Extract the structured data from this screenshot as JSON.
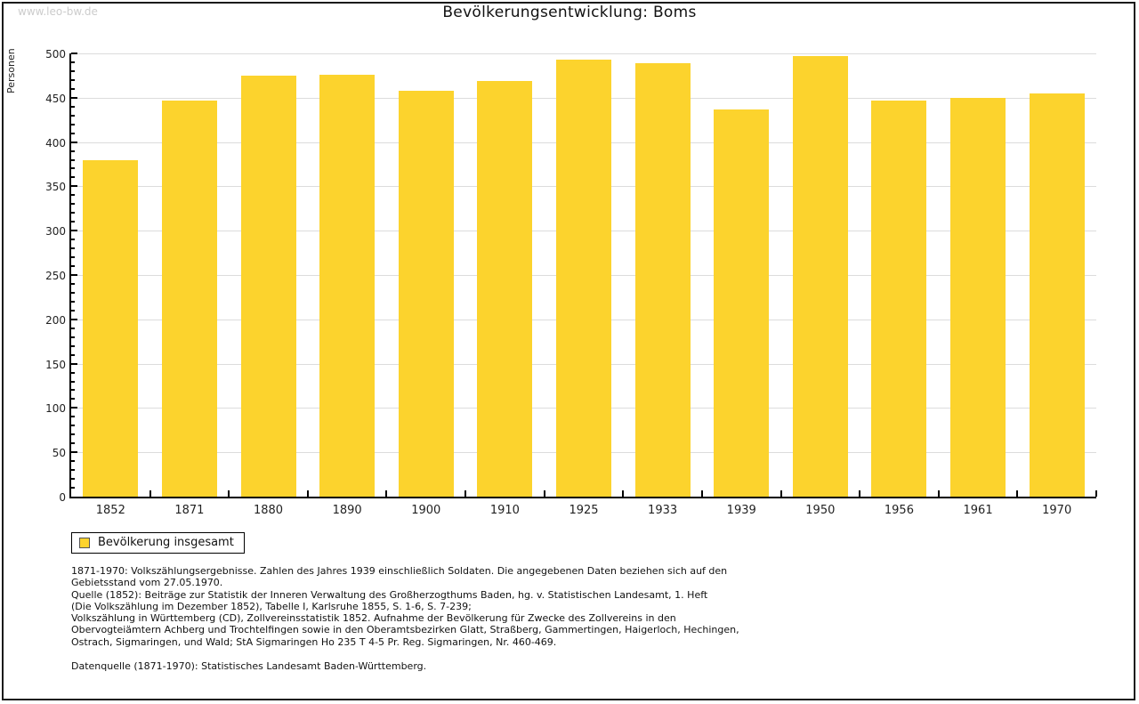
{
  "watermark": "www.leo-bw.de",
  "title": "Bevölkerungsentwicklung: Boms",
  "chart_data": {
    "type": "bar",
    "title": "Bevölkerungsentwicklung: Boms",
    "xlabel": "",
    "ylabel": "Personen",
    "categories": [
      "1852",
      "1871",
      "1880",
      "1890",
      "1900",
      "1910",
      "1925",
      "1933",
      "1939",
      "1950",
      "1956",
      "1961",
      "1970"
    ],
    "values": [
      380,
      447,
      475,
      476,
      458,
      469,
      493,
      489,
      437,
      497,
      447,
      450,
      455
    ],
    "ylim": [
      0,
      500
    ],
    "ytick_major": 50,
    "ytick_minor": 10,
    "grid": true,
    "legend_position": "bottom-left",
    "series_name": "Bevölkerung insgesamt"
  },
  "legend": {
    "label": "Bevölkerung insgesamt"
  },
  "footer": {
    "lines": [
      "1871-1970: Volkszählungsergebnisse. Zahlen des Jahres 1939 einschließlich Soldaten. Die angegebenen Daten beziehen sich auf den",
      "Gebietsstand vom 27.05.1970.",
      "Quelle (1852): Beiträge zur Statistik der Inneren Verwaltung des Großherzogthums Baden, hg. v. Statistischen Landesamt, 1. Heft",
      "(Die Volkszählung im Dezember 1852), Tabelle I, Karlsruhe 1855, S. 1-6, S. 7-239;",
      "Volkszählung in Württemberg (CD), Zollvereinsstatistik 1852. Aufnahme der Bevölkerung für Zwecke des Zollvereins in den",
      "Obervogteiämtern Achberg und Trochtelfingen sowie in den Oberamtsbezirken Glatt, Straßberg, Gammertingen, Haigerloch, Hechingen,",
      "Ostrach, Sigmaringen, und Wald; StA Sigmaringen Ho 235 T 4-5 Pr. Reg. Sigmaringen, Nr. 460-469."
    ],
    "datasource": "Datenquelle (1871-1970): Statistisches Landesamt Baden-Württemberg."
  },
  "colors": {
    "bar": "#FCD32D",
    "grid": "#DCDCDC",
    "axis": "#000000",
    "watermark": "#CCCCCC",
    "text": "#111111"
  }
}
